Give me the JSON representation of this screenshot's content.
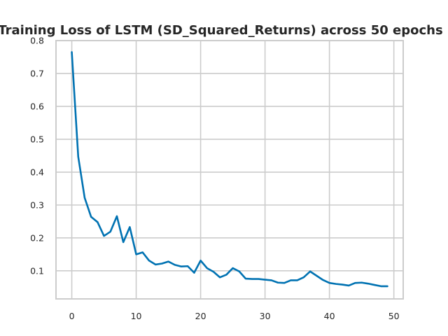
{
  "chart_data": {
    "type": "line",
    "title": "Training Loss of LSTM (SD_Squared_Returns) across 50 epochs",
    "xlabel": "",
    "ylabel": "",
    "xlim": [
      -2.45,
      51.45
    ],
    "ylim": [
      0.0145,
      0.8
    ],
    "xticks": [
      0,
      10,
      20,
      30,
      40,
      50
    ],
    "yticks": [
      0.1,
      0.2,
      0.3,
      0.4,
      0.5,
      0.6,
      0.7,
      0.8
    ],
    "grid": true,
    "legend": "none",
    "series": [
      {
        "color": "#0072b2",
        "x": [
          0,
          1,
          2,
          3,
          4,
          5,
          6,
          7,
          8,
          9,
          10,
          11,
          12,
          13,
          14,
          15,
          16,
          17,
          18,
          19,
          20,
          21,
          22,
          23,
          24,
          25,
          26,
          27,
          28,
          29,
          30,
          31,
          32,
          33,
          34,
          35,
          36,
          37,
          38,
          39,
          40,
          41,
          42,
          43,
          44,
          45,
          46,
          47,
          48,
          49
        ],
        "values": [
          0.765,
          0.447,
          0.322,
          0.264,
          0.248,
          0.206,
          0.219,
          0.266,
          0.187,
          0.233,
          0.15,
          0.156,
          0.131,
          0.119,
          0.122,
          0.128,
          0.118,
          0.113,
          0.114,
          0.094,
          0.131,
          0.108,
          0.097,
          0.08,
          0.088,
          0.108,
          0.098,
          0.076,
          0.075,
          0.075,
          0.073,
          0.071,
          0.064,
          0.063,
          0.071,
          0.071,
          0.08,
          0.098,
          0.085,
          0.072,
          0.063,
          0.06,
          0.058,
          0.055,
          0.063,
          0.064,
          0.061,
          0.057,
          0.053,
          0.053
        ]
      }
    ]
  }
}
